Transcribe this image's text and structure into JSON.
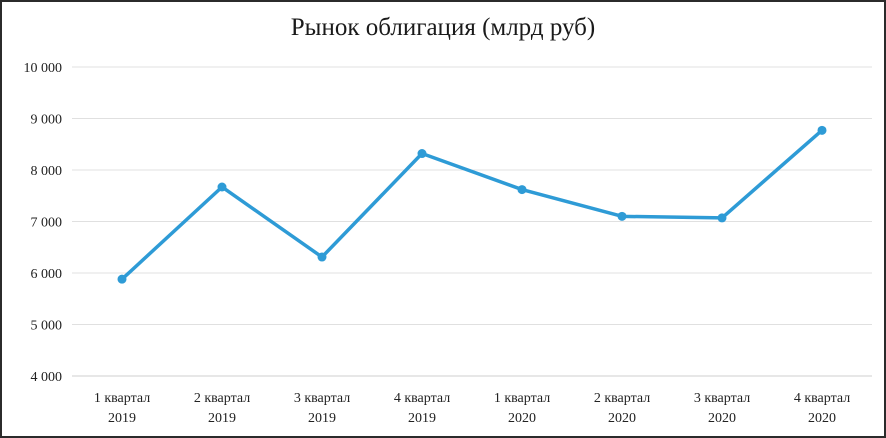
{
  "chart_data": {
    "type": "line",
    "title": "Рынок облигация (млрд руб)",
    "xlabel": "",
    "ylabel": "",
    "ylim": [
      4000,
      10000
    ],
    "yticks": [
      {
        "value": 4000,
        "label": "4 000"
      },
      {
        "value": 5000,
        "label": "5 000"
      },
      {
        "value": 6000,
        "label": "6 000"
      },
      {
        "value": 7000,
        "label": "7 000"
      },
      {
        "value": 8000,
        "label": "8 000"
      },
      {
        "value": 9000,
        "label": "9 000"
      },
      {
        "value": 10000,
        "label": "10 000"
      }
    ],
    "categories": [
      [
        "1 квартал",
        "2019"
      ],
      [
        "2 квартал",
        "2019"
      ],
      [
        "3 квартал",
        "2019"
      ],
      [
        "4 квартал",
        "2019"
      ],
      [
        "1 квартал",
        "2020"
      ],
      [
        "2 квартал",
        "2020"
      ],
      [
        "3 квартал",
        "2020"
      ],
      [
        "4 квартал",
        "2020"
      ]
    ],
    "series": [
      {
        "values": [
          5880,
          7670,
          6310,
          8320,
          7620,
          7100,
          7070,
          8770
        ]
      }
    ],
    "grid": true,
    "legend": "none",
    "colors": {
      "line": "#2e9bd6",
      "grid": "#e0e0e0",
      "axis": "#cfcfcf"
    }
  }
}
